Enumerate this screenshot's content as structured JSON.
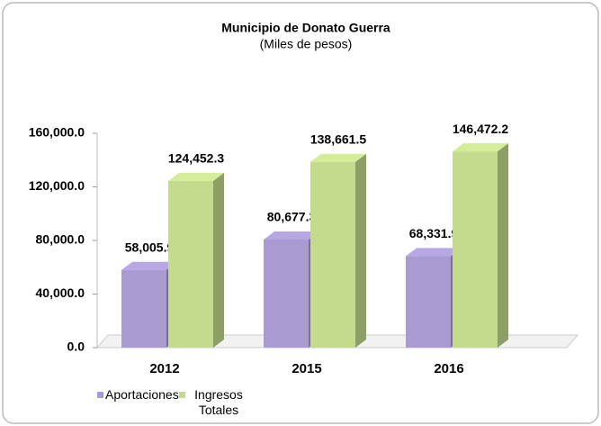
{
  "chart_data": {
    "type": "bar3d",
    "title": "Municipio de Donato Guerra",
    "subtitle": "(Miles de pesos)",
    "categories": [
      "2012",
      "2015",
      "2016"
    ],
    "series": [
      {
        "name": "Aportaciones",
        "color": "#a99bd2",
        "values": [
          58005.9,
          80677.3,
          68331.9
        ],
        "value_labels": [
          "58,005.9",
          "80,677.3",
          "68,331.9"
        ]
      },
      {
        "name": "Ingresos Totales",
        "color": "#c4db8e",
        "values": [
          124452.3,
          138661.5,
          146472.2
        ],
        "value_labels": [
          "124,452.3",
          "138,661.5",
          "146,472.2"
        ]
      }
    ],
    "ylim": [
      0,
      160000
    ],
    "yticks": [
      {
        "value": 0,
        "label": "0.0"
      },
      {
        "value": 40000,
        "label": "40,000.0"
      },
      {
        "value": 80000,
        "label": "80,000.0"
      },
      {
        "value": 120000,
        "label": "120,000.0"
      },
      {
        "value": 160000,
        "label": "160,000.0"
      }
    ],
    "legend": "bottom"
  }
}
